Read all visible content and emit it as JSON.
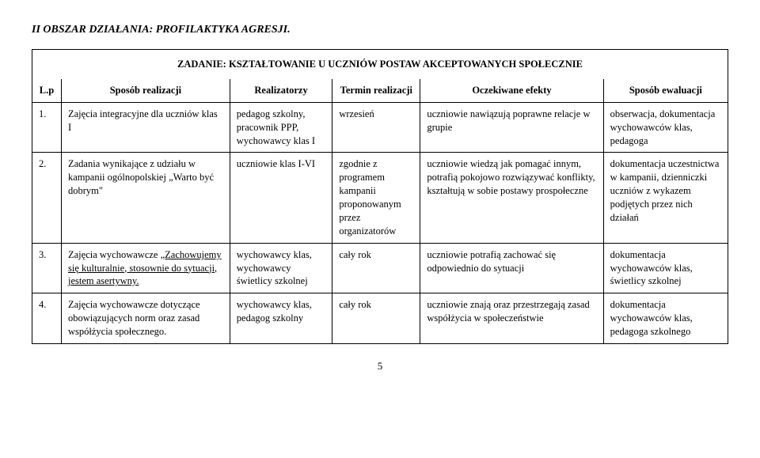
{
  "section_title": "II OBSZAR DZIAŁANIA:  PROFILAKTYKA AGRESJI.",
  "task_title": "ZADANIE: KSZTAŁTOWANIE U UCZNIÓW POSTAW AKCEPTOWANYCH SPOŁECZNIE",
  "headers": {
    "lp": "L.p",
    "sposob": "Sposób realizacji",
    "realizatorzy": "Realizatorzy",
    "termin": "Termin realizacji",
    "oczekiwane": "Oczekiwane efekty",
    "ewaluacja": "Sposób ewaluacji"
  },
  "rows": [
    {
      "lp": "1.",
      "sposob": "Zajęcia integracyjne dla uczniów klas I",
      "realizatorzy": "pedagog szkolny, pracownik PPP, wychowawcy klas I",
      "termin": "wrzesień",
      "oczekiwane": "uczniowie nawiązują poprawne relacje w grupie",
      "ewaluacja": "obserwacja, dokumentacja wychowawców klas, pedagoga"
    },
    {
      "lp": "2.",
      "sposob": "Zadania wynikające z udziału w kampanii ogólnopolskiej „Warto być dobrym\"",
      "realizatorzy": "uczniowie klas I-VI",
      "termin": "zgodnie z programem kampanii proponowanym przez organizatorów",
      "oczekiwane": "uczniowie wiedzą jak pomagać innym, potrafią pokojowo rozwiązywać konflikty, kształtują w sobie postawy prospołeczne",
      "ewaluacja": "dokumentacja uczestnictwa w kampanii, dzienniczki uczniów z wykazem podjętych przez nich działań"
    },
    {
      "lp": "3.",
      "sposob_pre": "Zajęcia wychowawcze ",
      "sposob_underline": "„Zachowujemy się kulturalnie, stosownie do sytuacji, jestem asertywny.",
      "realizatorzy": "wychowawcy klas, wychowawcy świetlicy szkolnej",
      "termin": "cały rok",
      "oczekiwane": "uczniowie potrafią zachować się odpowiednio do sytuacji",
      "ewaluacja": "dokumentacja wychowawców klas, świetlicy szkolnej"
    },
    {
      "lp": "4.",
      "sposob": "Zajęcia wychowawcze dotyczące obowiązujących norm oraz zasad współżycia społecznego.",
      "realizatorzy": "wychowawcy klas, pedagog szkolny",
      "termin": "cały rok",
      "oczekiwane": "uczniowie znają oraz przestrzegają zasad współżycia w społeczeństwie",
      "ewaluacja": "dokumentacja wychowawców klas, pedagoga szkolnego"
    }
  ],
  "page_number": "5"
}
